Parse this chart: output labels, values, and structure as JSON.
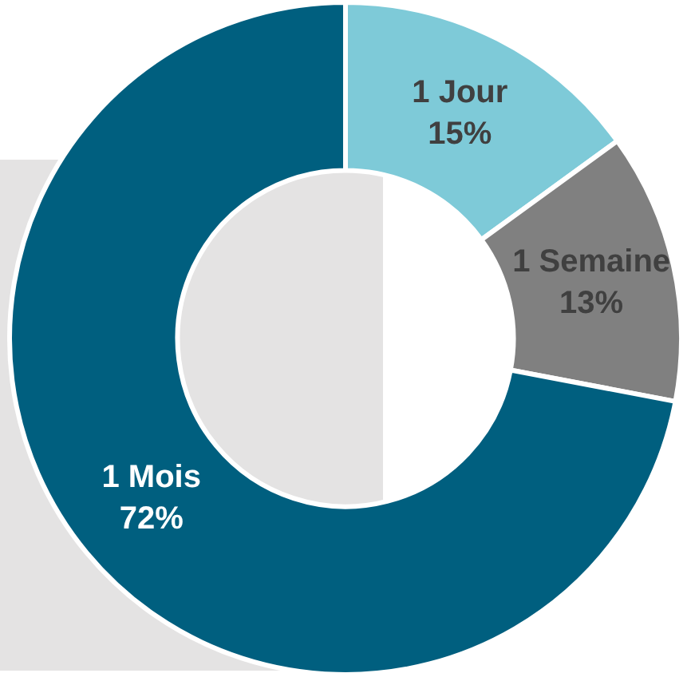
{
  "chart_data": {
    "type": "donut",
    "categories": [
      "1 Jour",
      "1 Semaine",
      "1 Mois"
    ],
    "values": [
      15,
      13,
      72
    ],
    "value_labels": [
      "15%",
      "13%",
      "72%"
    ],
    "colors": [
      "#7ecad8",
      "#808080",
      "#005f7f"
    ],
    "legend": false
  }
}
